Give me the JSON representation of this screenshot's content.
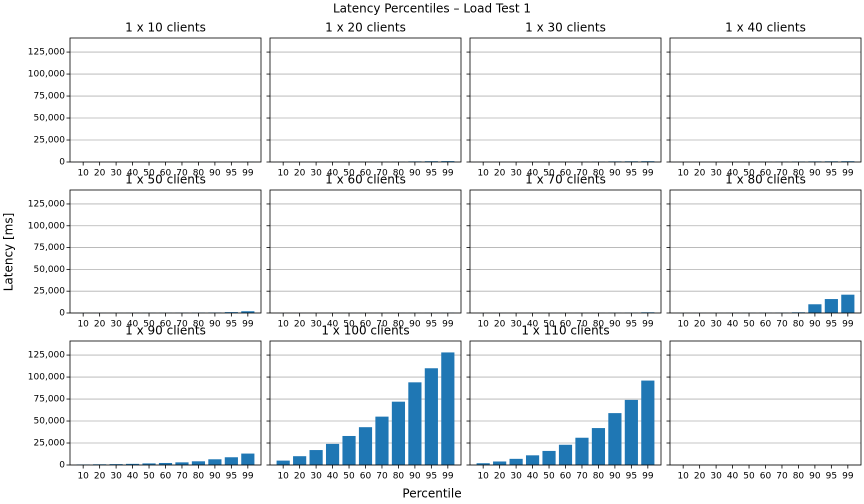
{
  "title": "Latency Percentiles – Load Test 1",
  "xlabel": "Percentile",
  "ylabel": "Latency [ms]",
  "ylim": [
    0,
    141000
  ],
  "yticks": [
    0,
    {
      "value": 25000,
      "label": "25,000"
    },
    {
      "value": 50000,
      "label": "50,000"
    },
    {
      "value": 75000,
      "label": "75,000"
    },
    {
      "value": 100000,
      "label": "100,000"
    },
    {
      "value": 125000,
      "label": "125,000"
    }
  ],
  "grid": true,
  "chart_data": [
    {
      "type": "bar",
      "title": "1 x 10 clients",
      "color": "#1f77b4",
      "categories": [
        "10",
        "20",
        "30",
        "40",
        "50",
        "60",
        "70",
        "80",
        "90",
        "95",
        "99"
      ],
      "values": [
        50,
        60,
        70,
        80,
        90,
        100,
        110,
        130,
        160,
        180,
        250
      ]
    },
    {
      "type": "bar",
      "title": "1 x 20 clients",
      "color": "#1f77b4",
      "categories": [
        "10",
        "20",
        "30",
        "40",
        "50",
        "60",
        "70",
        "80",
        "90",
        "95",
        "99"
      ],
      "values": [
        80,
        100,
        120,
        150,
        180,
        220,
        280,
        400,
        700,
        900,
        1000
      ]
    },
    {
      "type": "bar",
      "title": "1 x 30 clients",
      "color": "#1f77b4",
      "categories": [
        "10",
        "20",
        "30",
        "40",
        "50",
        "60",
        "70",
        "80",
        "90",
        "95",
        "99"
      ],
      "values": [
        80,
        100,
        120,
        150,
        180,
        220,
        300,
        500,
        700,
        800,
        900
      ]
    },
    {
      "type": "bar",
      "title": "1 x 40 clients",
      "color": "#1f77b4",
      "categories": [
        "10",
        "20",
        "30",
        "40",
        "50",
        "60",
        "70",
        "80",
        "90",
        "95",
        "99"
      ],
      "values": [
        80,
        100,
        120,
        150,
        200,
        300,
        500,
        600,
        700,
        800,
        900
      ]
    },
    {
      "type": "bar",
      "title": "1 x 50 clients",
      "color": "#1f77b4",
      "categories": [
        "10",
        "20",
        "30",
        "40",
        "50",
        "60",
        "70",
        "80",
        "90",
        "95",
        "99"
      ],
      "values": [
        100,
        120,
        150,
        180,
        220,
        280,
        350,
        450,
        600,
        1000,
        2000
      ]
    },
    {
      "type": "bar",
      "title": "1 x 60 clients",
      "color": "#1f77b4",
      "categories": [
        "10",
        "20",
        "30",
        "40",
        "50",
        "60",
        "70",
        "80",
        "90",
        "95",
        "99"
      ],
      "values": [
        50,
        60,
        70,
        80,
        90,
        100,
        120,
        140,
        170,
        200,
        300
      ]
    },
    {
      "type": "bar",
      "title": "1 x 70 clients",
      "color": "#1f77b4",
      "categories": [
        "10",
        "20",
        "30",
        "40",
        "50",
        "60",
        "70",
        "80",
        "90",
        "95",
        "99"
      ],
      "values": [
        60,
        70,
        80,
        90,
        100,
        120,
        150,
        200,
        300,
        400,
        800
      ]
    },
    {
      "type": "bar",
      "title": "1 x 80 clients",
      "color": "#1f77b4",
      "categories": [
        "10",
        "20",
        "30",
        "40",
        "50",
        "60",
        "70",
        "80",
        "90",
        "95",
        "99"
      ],
      "values": [
        100,
        120,
        150,
        180,
        220,
        300,
        400,
        800,
        10000,
        16000,
        21000
      ]
    },
    {
      "type": "bar",
      "title": "1 x 90 clients",
      "color": "#1f77b4",
      "categories": [
        "10",
        "20",
        "30",
        "40",
        "50",
        "60",
        "70",
        "80",
        "90",
        "95",
        "99"
      ],
      "values": [
        600,
        800,
        1000,
        1300,
        1800,
        2300,
        3000,
        4200,
        6500,
        8800,
        13000
      ]
    },
    {
      "type": "bar",
      "title": "1 x 100 clients",
      "color": "#1f77b4",
      "categories": [
        "10",
        "20",
        "30",
        "40",
        "50",
        "60",
        "70",
        "80",
        "90",
        "95",
        "99"
      ],
      "values": [
        5000,
        10000,
        17000,
        24000,
        33000,
        43000,
        55000,
        72000,
        94000,
        110000,
        128000
      ]
    },
    {
      "type": "bar",
      "title": "1 x 110 clients",
      "color": "#1f77b4",
      "categories": [
        "10",
        "20",
        "30",
        "40",
        "50",
        "60",
        "70",
        "80",
        "90",
        "95",
        "99"
      ],
      "values": [
        2000,
        4000,
        7000,
        11000,
        16000,
        23000,
        31000,
        42000,
        59000,
        74000,
        96000
      ]
    },
    {
      "type": "bar",
      "categories": [
        "10",
        "20",
        "30",
        "40",
        "50",
        "60",
        "70",
        "80",
        "90",
        "95",
        "99"
      ]
    }
  ]
}
